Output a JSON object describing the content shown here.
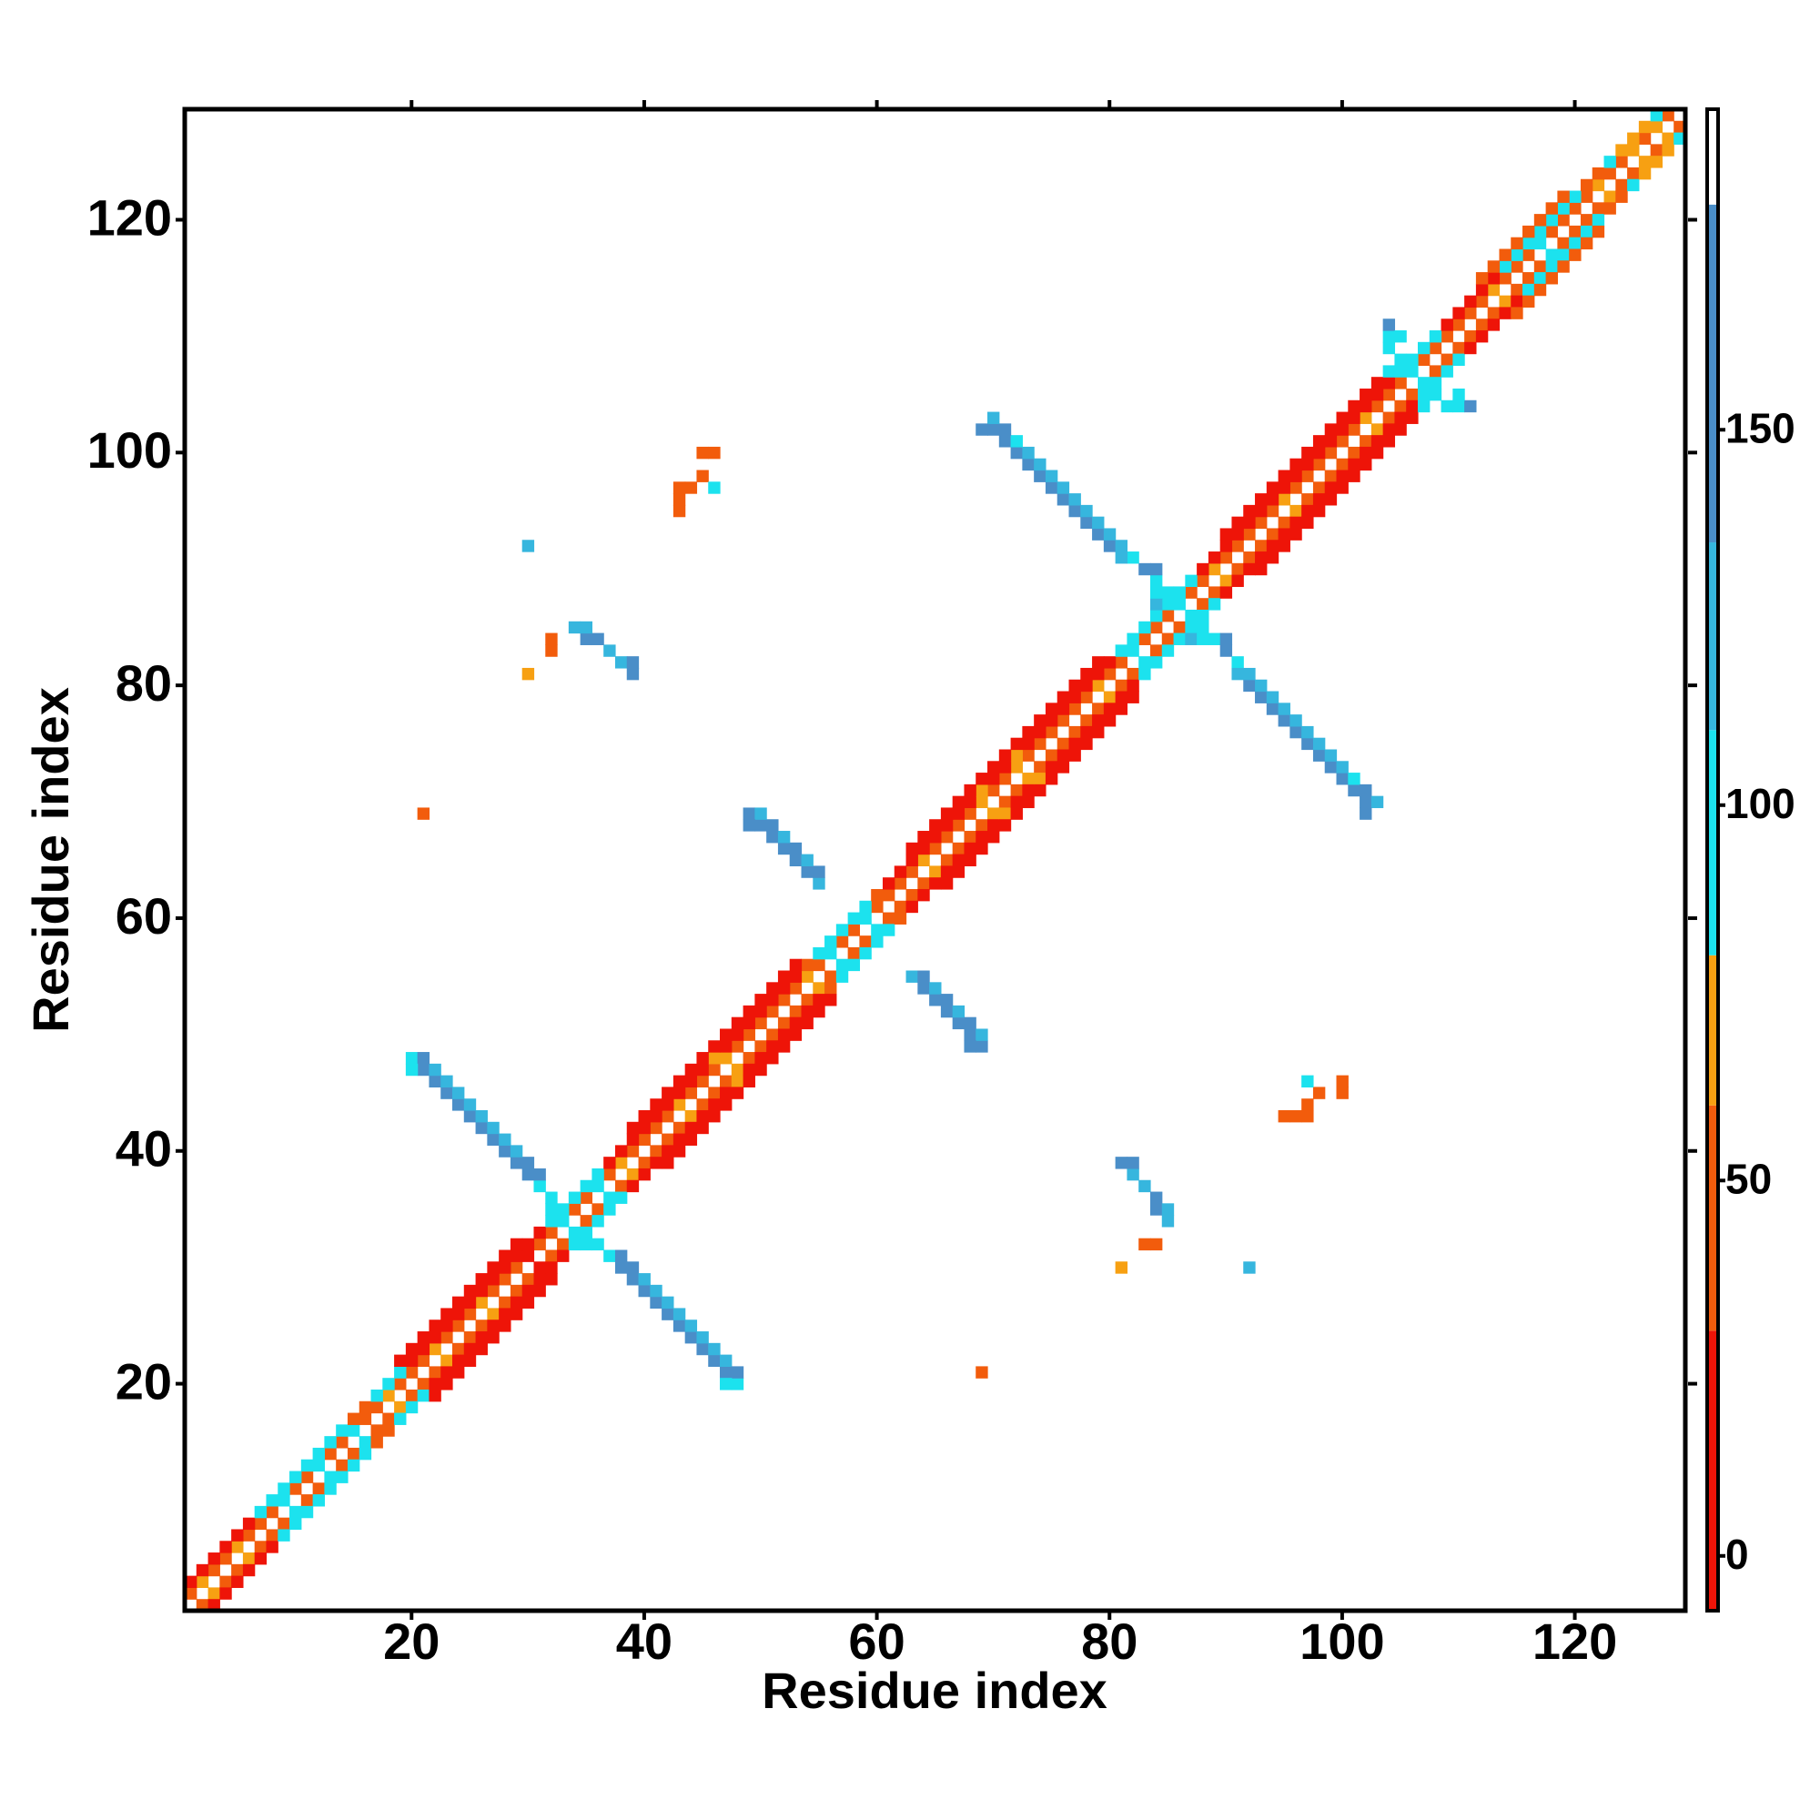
{
  "chart_data": {
    "type": "heatmap",
    "xlabel": "Residue index",
    "ylabel": "Residue index",
    "xlim": [
      0.5,
      129.5
    ],
    "ylim": [
      0.5,
      129.5
    ],
    "xticks": [
      20,
      40,
      60,
      80,
      100,
      120
    ],
    "yticks": [
      20,
      40,
      60,
      80,
      100,
      120
    ],
    "diagonals": [
      {
        "offset": 1,
        "values": [
          45,
          70,
          45,
          45,
          70,
          45,
          45,
          45,
          100,
          45,
          45,
          100,
          45,
          45,
          100,
          45,
          45,
          70,
          45,
          45,
          45,
          70,
          45,
          45,
          45,
          70,
          45,
          45,
          45,
          15,
          45,
          45,
          100,
          45,
          45,
          100,
          45,
          70,
          45,
          45,
          45,
          45,
          70,
          45,
          45,
          45,
          70,
          45,
          45,
          45,
          45,
          45,
          45,
          70,
          45,
          100,
          45,
          45,
          100,
          45,
          45,
          45,
          45,
          70,
          45,
          45,
          45,
          45,
          70,
          45,
          45,
          70,
          45,
          45,
          45,
          45,
          45,
          45,
          70,
          45,
          45,
          100,
          45,
          45,
          45,
          100,
          45,
          45,
          70,
          45,
          45,
          45,
          45,
          45,
          70,
          45,
          45,
          45,
          45,
          45,
          45,
          70,
          45,
          45,
          45,
          100,
          45,
          45,
          45,
          45,
          45,
          45,
          70,
          45,
          45,
          45,
          100,
          45,
          45,
          45,
          45,
          70,
          45,
          45,
          70,
          45,
          70,
          45
        ]
      },
      {
        "offset": 2,
        "values": [
          15,
          15,
          15,
          15,
          15,
          15,
          100,
          100,
          100,
          100,
          100,
          100,
          100,
          100,
          45,
          45,
          100,
          100,
          100,
          15,
          15,
          15,
          15,
          15,
          15,
          15,
          15,
          15,
          15,
          15,
          15,
          100,
          100,
          100,
          100,
          100,
          15,
          15,
          15,
          15,
          15,
          15,
          15,
          15,
          15,
          70,
          15,
          15,
          15,
          15,
          15,
          15,
          15,
          45,
          100,
          100,
          100,
          100,
          100,
          45,
          15,
          15,
          15,
          15,
          15,
          15,
          15,
          15,
          70,
          15,
          15,
          70,
          15,
          15,
          15,
          15,
          15,
          15,
          15,
          15,
          100,
          100,
          100,
          100,
          100,
          100,
          100,
          15,
          15,
          15,
          15,
          15,
          15,
          15,
          15,
          15,
          15,
          15,
          15,
          15,
          15,
          15,
          15,
          15,
          100,
          100,
          100,
          100,
          15,
          15,
          15,
          15,
          15,
          100,
          100,
          100,
          100,
          100,
          100,
          100,
          45,
          45,
          100,
          70,
          70,
          70,
          100
        ]
      },
      {
        "offset": 3,
        "values": [
          null,
          null,
          null,
          null,
          null,
          null,
          null,
          null,
          null,
          null,
          null,
          null,
          null,
          null,
          null,
          null,
          null,
          null,
          15,
          15,
          15,
          15,
          15,
          15,
          15,
          15,
          15,
          15,
          15,
          null,
          null,
          null,
          null,
          null,
          null,
          null,
          null,
          null,
          15,
          15,
          15,
          15,
          15,
          15,
          15,
          15,
          15,
          15,
          15,
          15,
          15,
          15,
          15,
          null,
          null,
          null,
          null,
          null,
          null,
          null,
          null,
          null,
          15,
          15,
          15,
          15,
          15,
          15,
          15,
          15,
          15,
          15,
          15,
          15,
          15,
          15,
          15,
          15,
          15,
          null,
          null,
          null,
          null,
          null,
          null,
          null,
          null,
          null,
          null,
          15,
          15,
          15,
          15,
          15,
          15,
          15,
          15,
          15,
          15,
          15,
          15,
          15,
          15,
          null,
          null,
          null,
          null,
          null,
          null,
          null,
          null,
          45,
          45,
          45,
          45,
          45,
          45,
          45,
          45,
          null,
          null,
          null,
          null,
          null,
          null,
          null
        ]
      }
    ],
    "cells": [
      [
        37,
        31,
        100
      ],
      [
        38,
        30,
        140
      ],
      [
        38,
        31,
        140
      ],
      [
        39,
        29,
        140
      ],
      [
        39,
        30,
        140
      ],
      [
        40,
        28,
        140
      ],
      [
        40,
        29,
        120
      ],
      [
        41,
        27,
        140
      ],
      [
        41,
        28,
        120
      ],
      [
        42,
        26,
        140
      ],
      [
        42,
        27,
        120
      ],
      [
        43,
        25,
        140
      ],
      [
        43,
        26,
        120
      ],
      [
        44,
        24,
        140
      ],
      [
        44,
        25,
        120
      ],
      [
        45,
        23,
        140
      ],
      [
        45,
        24,
        120
      ],
      [
        46,
        22,
        140
      ],
      [
        46,
        23,
        120
      ],
      [
        47,
        21,
        140
      ],
      [
        47,
        22,
        120
      ],
      [
        48,
        20,
        100
      ],
      [
        48,
        21,
        140
      ],
      [
        47,
        20,
        100
      ],
      [
        36,
        32,
        100
      ],
      [
        35,
        32,
        100
      ],
      [
        63,
        55,
        120
      ],
      [
        64,
        54,
        140
      ],
      [
        64,
        55,
        140
      ],
      [
        65,
        53,
        140
      ],
      [
        65,
        54,
        120
      ],
      [
        66,
        52,
        140
      ],
      [
        66,
        53,
        140
      ],
      [
        67,
        51,
        140
      ],
      [
        67,
        52,
        120
      ],
      [
        68,
        50,
        140
      ],
      [
        68,
        51,
        140
      ],
      [
        69,
        49,
        140
      ],
      [
        69,
        50,
        120
      ],
      [
        68,
        49,
        140
      ],
      [
        89,
        84,
        100
      ],
      [
        90,
        83,
        140
      ],
      [
        90,
        84,
        140
      ],
      [
        91,
        82,
        100
      ],
      [
        91,
        81,
        120
      ],
      [
        92,
        80,
        140
      ],
      [
        92,
        81,
        120
      ],
      [
        93,
        79,
        140
      ],
      [
        93,
        80,
        120
      ],
      [
        94,
        78,
        140
      ],
      [
        94,
        79,
        120
      ],
      [
        95,
        77,
        140
      ],
      [
        95,
        78,
        120
      ],
      [
        96,
        76,
        140
      ],
      [
        96,
        77,
        120
      ],
      [
        97,
        75,
        140
      ],
      [
        97,
        76,
        120
      ],
      [
        98,
        74,
        140
      ],
      [
        98,
        75,
        120
      ],
      [
        99,
        73,
        140
      ],
      [
        99,
        74,
        120
      ],
      [
        100,
        72,
        140
      ],
      [
        100,
        73,
        120
      ],
      [
        101,
        71,
        140
      ],
      [
        101,
        72,
        100
      ],
      [
        102,
        70,
        140
      ],
      [
        102,
        71,
        140
      ],
      [
        103,
        70,
        120
      ],
      [
        102,
        69,
        140
      ],
      [
        88,
        85,
        100
      ],
      [
        87,
        84,
        120
      ],
      [
        88,
        84,
        100
      ],
      [
        108,
        105,
        100
      ],
      [
        109,
        104,
        100
      ],
      [
        110,
        104,
        100
      ],
      [
        111,
        104,
        140
      ],
      [
        110,
        105,
        100
      ],
      [
        107,
        104,
        100
      ],
      [
        81,
        39,
        140
      ],
      [
        82,
        38,
        120
      ],
      [
        83,
        37,
        120
      ],
      [
        84,
        36,
        140
      ],
      [
        84,
        35,
        140
      ],
      [
        85,
        34,
        120
      ],
      [
        85,
        35,
        120
      ],
      [
        82,
        39,
        140
      ],
      [
        84,
        32,
        45
      ],
      [
        83,
        32,
        45
      ],
      [
        81,
        30,
        70
      ],
      [
        92,
        30,
        120
      ],
      [
        69,
        21,
        45
      ],
      [
        95,
        43,
        45
      ],
      [
        96,
        43,
        45
      ],
      [
        97,
        43,
        45
      ],
      [
        97,
        44,
        45
      ],
      [
        98,
        45,
        45
      ],
      [
        97,
        46,
        100
      ],
      [
        100,
        46,
        45
      ],
      [
        100,
        45,
        45
      ]
    ],
    "colorbar": {
      "zlim": [
        -7.3,
        192.7
      ],
      "ticks": [
        0,
        50,
        100,
        150
      ],
      "bands": [
        {
          "max": 30,
          "color": "#ee1408"
        },
        {
          "max": 60,
          "color": "#f25c0c"
        },
        {
          "max": 80,
          "color": "#f7a012"
        },
        {
          "max": 110,
          "color": "#1ce2ee"
        },
        {
          "max": 135,
          "color": "#36b6de"
        },
        {
          "max": 180,
          "color": "#4a8ec8"
        },
        {
          "max": 192.7,
          "color": "#ffffff"
        }
      ]
    }
  }
}
